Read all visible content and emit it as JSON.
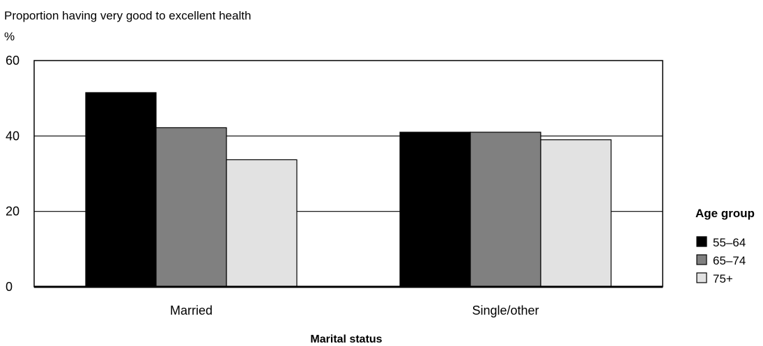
{
  "chart_data": {
    "type": "bar",
    "title": "Proportion having very good to excellent health",
    "unit": "%",
    "xlabel": "Marital status",
    "ylabel": "",
    "categories": [
      "Married",
      "Single/other"
    ],
    "ylim": [
      0,
      60
    ],
    "yticks": [
      0,
      20,
      40,
      60
    ],
    "grid": true,
    "legend": {
      "title": "Age group",
      "placement": "right"
    },
    "series": [
      {
        "name": "55–64",
        "values": [
          51.5,
          41
        ],
        "color": "#000000"
      },
      {
        "name": "65–74",
        "values": [
          42.2,
          41
        ],
        "color": "#808080"
      },
      {
        "name": "75+",
        "values": [
          33.7,
          39
        ],
        "color": "#e2e2e2"
      }
    ]
  }
}
